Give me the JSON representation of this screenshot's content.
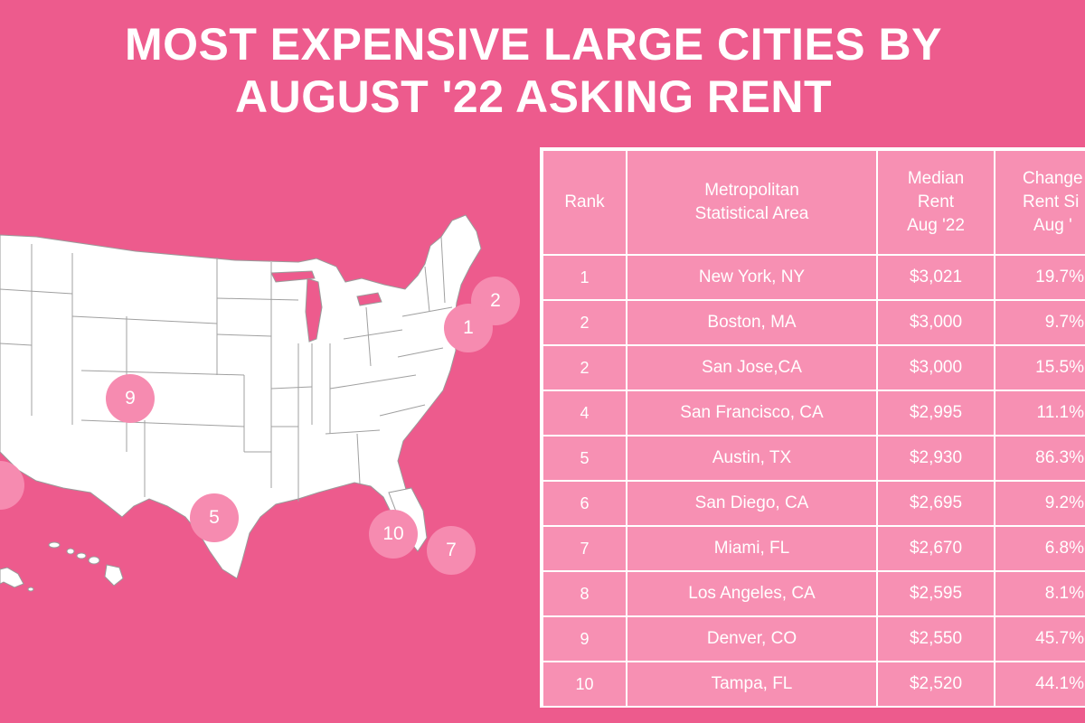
{
  "title": {
    "line1": "MOST EXPENSIVE LARGE CITIES BY",
    "line2": "AUGUST '22 ASKING RENT"
  },
  "colors": {
    "background": "#ed5b8d",
    "table_fill": "#f790b3",
    "marker_fill": "#f68bb0",
    "map_fill": "#ffffff",
    "text": "#ffffff"
  },
  "map": {
    "markers": [
      {
        "label": "2"
      },
      {
        "label": "1"
      },
      {
        "label": "9"
      },
      {
        "label": "5"
      },
      {
        "label": "10"
      },
      {
        "label": "7"
      }
    ]
  },
  "table": {
    "headers": {
      "rank": "Rank",
      "area_line1": "Metropolitan",
      "area_line2": "Statistical Area",
      "rent_line1": "Median",
      "rent_line2": "Rent",
      "rent_line3": "Aug '22",
      "change_line1": "Change",
      "change_line2": "Rent Si",
      "change_line3": "Aug '"
    },
    "rows": [
      {
        "rank": "1",
        "area": "New York, NY",
        "rent": "$3,021",
        "change": "19.7%"
      },
      {
        "rank": "2",
        "area": "Boston, MA",
        "rent": "$3,000",
        "change": "9.7%"
      },
      {
        "rank": "2",
        "area": "San Jose,CA",
        "rent": "$3,000",
        "change": "15.5%"
      },
      {
        "rank": "4",
        "area": "San Francisco, CA",
        "rent": "$2,995",
        "change": "11.1%"
      },
      {
        "rank": "5",
        "area": "Austin, TX",
        "rent": "$2,930",
        "change": "86.3%"
      },
      {
        "rank": "6",
        "area": "San Diego, CA",
        "rent": "$2,695",
        "change": "9.2%"
      },
      {
        "rank": "7",
        "area": "Miami, FL",
        "rent": "$2,670",
        "change": "6.8%"
      },
      {
        "rank": "8",
        "area": "Los Angeles, CA",
        "rent": "$2,595",
        "change": "8.1%"
      },
      {
        "rank": "9",
        "area": "Denver, CO",
        "rent": "$2,550",
        "change": "45.7%"
      },
      {
        "rank": "10",
        "area": "Tampa, FL",
        "rent": "$2,520",
        "change": "44.1%"
      }
    ]
  }
}
